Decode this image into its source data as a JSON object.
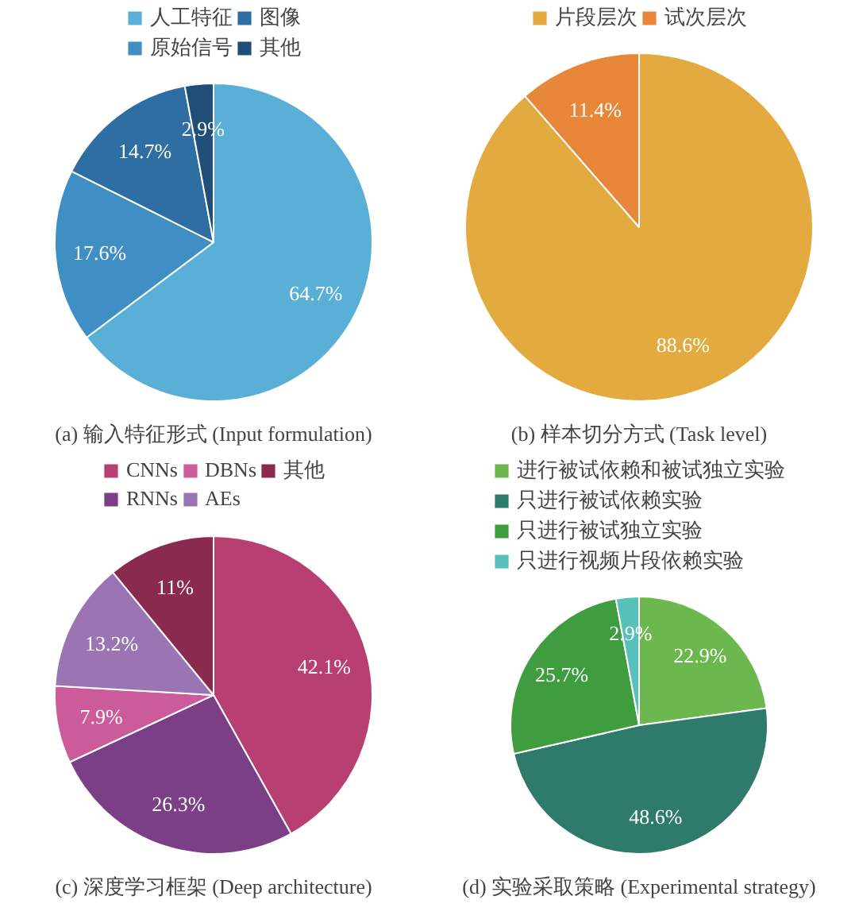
{
  "chart_data": [
    {
      "type": "pie",
      "title": "(a) 输入特征形式 (Input formulation)",
      "categories": [
        "人工特征",
        "原始信号",
        "图像",
        "其他"
      ],
      "values": [
        64.7,
        17.6,
        14.7,
        2.9
      ],
      "colors": [
        "#5aafd6",
        "#3f8fc5",
        "#2e6ea3",
        "#1f4e79"
      ],
      "value_labels": [
        "64.7%",
        "17.6%",
        "14.7%",
        "2.9%"
      ],
      "legend": "top"
    },
    {
      "type": "pie",
      "title": "(b) 样本切分方式 (Task level)",
      "categories": [
        "片段层次",
        "试次层次"
      ],
      "values": [
        88.6,
        11.4
      ],
      "colors": [
        "#e3aa3f",
        "#e8873a"
      ],
      "value_labels": [
        "88.6%",
        "11.4%"
      ],
      "legend": "top"
    },
    {
      "type": "pie",
      "title": "(c) 深度学习框架 (Deep architecture)",
      "categories": [
        "CNNs",
        "RNNs",
        "DBNs",
        "AEs",
        "其他"
      ],
      "values": [
        42.1,
        26.3,
        7.9,
        13.2,
        11
      ],
      "colors": [
        "#b83f72",
        "#7b3f86",
        "#cc5b9b",
        "#9b74b3",
        "#8b2a4f"
      ],
      "value_labels": [
        "42.1%",
        "26.3%",
        "7.9%",
        "13.2%",
        "11%"
      ],
      "legend": "top"
    },
    {
      "type": "pie",
      "title": "(d) 实验采取策略 (Experimental strategy)",
      "categories": [
        "进行被试依赖和被试独立实验",
        "只进行被试依赖实验",
        "只进行被试独立实验",
        "只进行视频片段依赖实验"
      ],
      "values": [
        22.9,
        48.6,
        25.7,
        2.9
      ],
      "colors": [
        "#6cb84f",
        "#2e7a6b",
        "#3f9c3f",
        "#57c0b8"
      ],
      "value_labels": [
        "22.9%",
        "48.6%",
        "25.7%",
        "2.9%"
      ],
      "legend": "top"
    }
  ]
}
